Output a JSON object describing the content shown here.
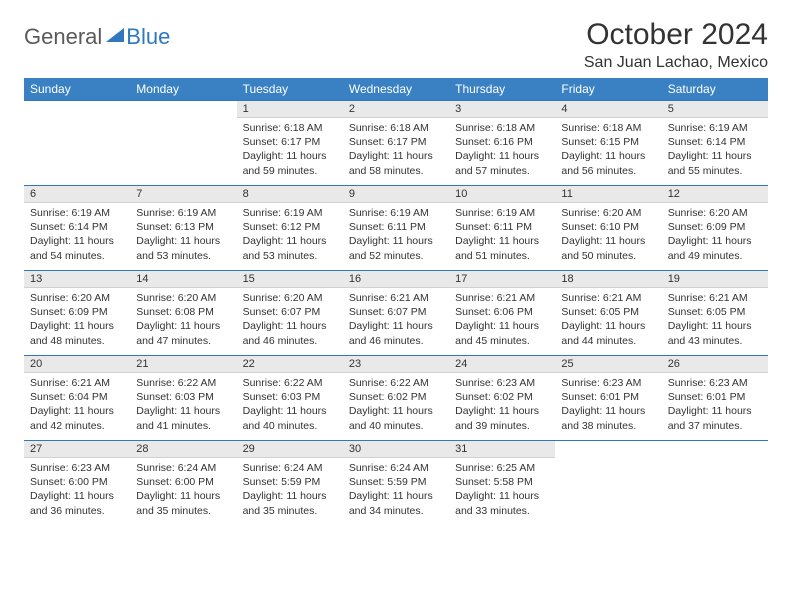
{
  "logo": {
    "textA": "General",
    "textB": "Blue"
  },
  "title": "October 2024",
  "location": "San Juan Lachao, Mexico",
  "weekdays": [
    "Sunday",
    "Monday",
    "Tuesday",
    "Wednesday",
    "Thursday",
    "Friday",
    "Saturday"
  ],
  "colors": {
    "header_bg": "#3a81c4",
    "daynum_bg": "#e9e9e9",
    "accent_border": "#2f78bd",
    "logo_gray": "#5a5a5a"
  },
  "weeks": [
    [
      null,
      null,
      {
        "n": "1",
        "sr": "6:18 AM",
        "ss": "6:17 PM",
        "dl": "11 hours and 59 minutes."
      },
      {
        "n": "2",
        "sr": "6:18 AM",
        "ss": "6:17 PM",
        "dl": "11 hours and 58 minutes."
      },
      {
        "n": "3",
        "sr": "6:18 AM",
        "ss": "6:16 PM",
        "dl": "11 hours and 57 minutes."
      },
      {
        "n": "4",
        "sr": "6:18 AM",
        "ss": "6:15 PM",
        "dl": "11 hours and 56 minutes."
      },
      {
        "n": "5",
        "sr": "6:19 AM",
        "ss": "6:14 PM",
        "dl": "11 hours and 55 minutes."
      }
    ],
    [
      {
        "n": "6",
        "sr": "6:19 AM",
        "ss": "6:14 PM",
        "dl": "11 hours and 54 minutes."
      },
      {
        "n": "7",
        "sr": "6:19 AM",
        "ss": "6:13 PM",
        "dl": "11 hours and 53 minutes."
      },
      {
        "n": "8",
        "sr": "6:19 AM",
        "ss": "6:12 PM",
        "dl": "11 hours and 53 minutes."
      },
      {
        "n": "9",
        "sr": "6:19 AM",
        "ss": "6:11 PM",
        "dl": "11 hours and 52 minutes."
      },
      {
        "n": "10",
        "sr": "6:19 AM",
        "ss": "6:11 PM",
        "dl": "11 hours and 51 minutes."
      },
      {
        "n": "11",
        "sr": "6:20 AM",
        "ss": "6:10 PM",
        "dl": "11 hours and 50 minutes."
      },
      {
        "n": "12",
        "sr": "6:20 AM",
        "ss": "6:09 PM",
        "dl": "11 hours and 49 minutes."
      }
    ],
    [
      {
        "n": "13",
        "sr": "6:20 AM",
        "ss": "6:09 PM",
        "dl": "11 hours and 48 minutes."
      },
      {
        "n": "14",
        "sr": "6:20 AM",
        "ss": "6:08 PM",
        "dl": "11 hours and 47 minutes."
      },
      {
        "n": "15",
        "sr": "6:20 AM",
        "ss": "6:07 PM",
        "dl": "11 hours and 46 minutes."
      },
      {
        "n": "16",
        "sr": "6:21 AM",
        "ss": "6:07 PM",
        "dl": "11 hours and 46 minutes."
      },
      {
        "n": "17",
        "sr": "6:21 AM",
        "ss": "6:06 PM",
        "dl": "11 hours and 45 minutes."
      },
      {
        "n": "18",
        "sr": "6:21 AM",
        "ss": "6:05 PM",
        "dl": "11 hours and 44 minutes."
      },
      {
        "n": "19",
        "sr": "6:21 AM",
        "ss": "6:05 PM",
        "dl": "11 hours and 43 minutes."
      }
    ],
    [
      {
        "n": "20",
        "sr": "6:21 AM",
        "ss": "6:04 PM",
        "dl": "11 hours and 42 minutes."
      },
      {
        "n": "21",
        "sr": "6:22 AM",
        "ss": "6:03 PM",
        "dl": "11 hours and 41 minutes."
      },
      {
        "n": "22",
        "sr": "6:22 AM",
        "ss": "6:03 PM",
        "dl": "11 hours and 40 minutes."
      },
      {
        "n": "23",
        "sr": "6:22 AM",
        "ss": "6:02 PM",
        "dl": "11 hours and 40 minutes."
      },
      {
        "n": "24",
        "sr": "6:23 AM",
        "ss": "6:02 PM",
        "dl": "11 hours and 39 minutes."
      },
      {
        "n": "25",
        "sr": "6:23 AM",
        "ss": "6:01 PM",
        "dl": "11 hours and 38 minutes."
      },
      {
        "n": "26",
        "sr": "6:23 AM",
        "ss": "6:01 PM",
        "dl": "11 hours and 37 minutes."
      }
    ],
    [
      {
        "n": "27",
        "sr": "6:23 AM",
        "ss": "6:00 PM",
        "dl": "11 hours and 36 minutes."
      },
      {
        "n": "28",
        "sr": "6:24 AM",
        "ss": "6:00 PM",
        "dl": "11 hours and 35 minutes."
      },
      {
        "n": "29",
        "sr": "6:24 AM",
        "ss": "5:59 PM",
        "dl": "11 hours and 35 minutes."
      },
      {
        "n": "30",
        "sr": "6:24 AM",
        "ss": "5:59 PM",
        "dl": "11 hours and 34 minutes."
      },
      {
        "n": "31",
        "sr": "6:25 AM",
        "ss": "5:58 PM",
        "dl": "11 hours and 33 minutes."
      },
      null,
      null
    ]
  ],
  "labels": {
    "sunrise": "Sunrise:",
    "sunset": "Sunset:",
    "daylight": "Daylight:"
  }
}
